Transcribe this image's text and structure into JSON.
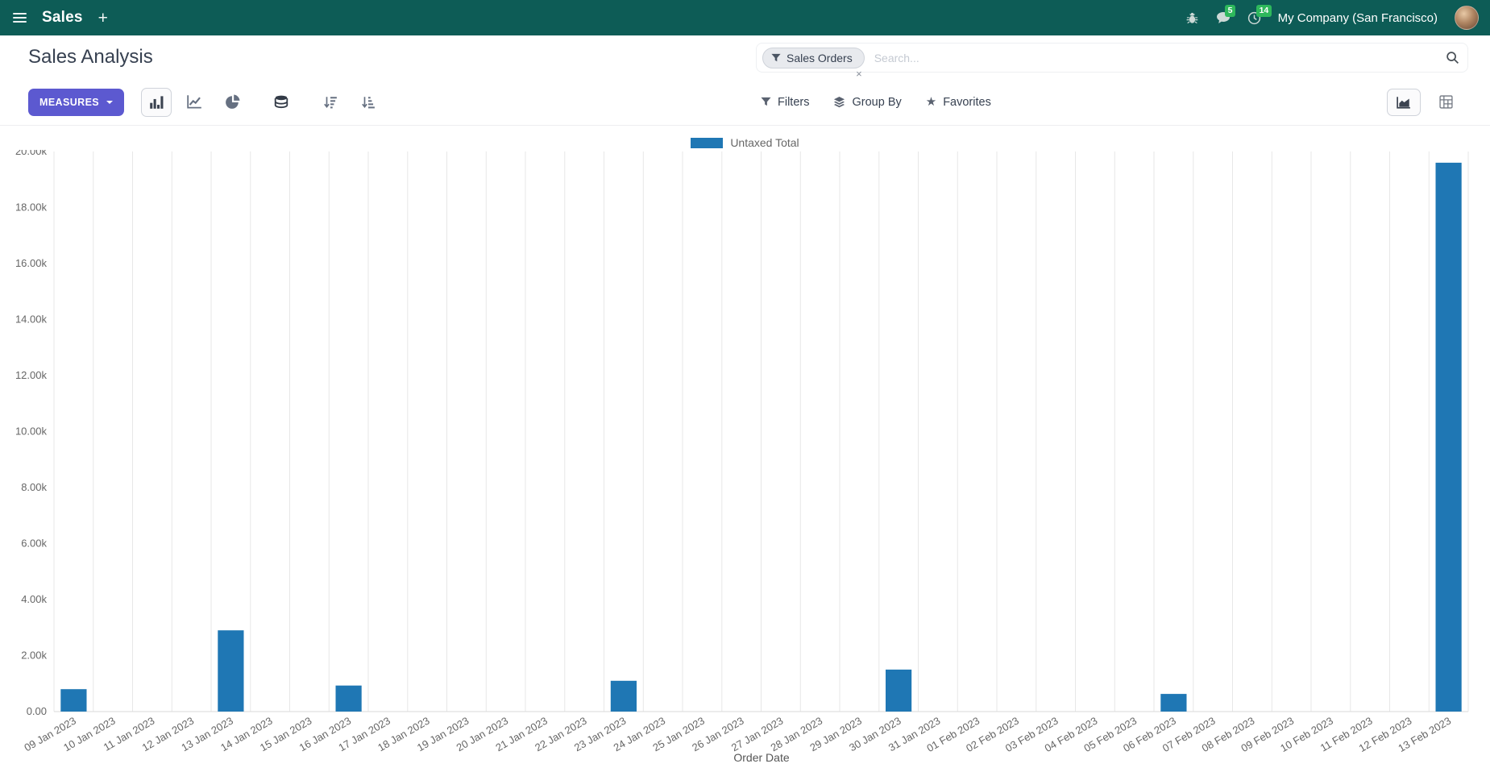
{
  "navbar": {
    "app_name": "Sales",
    "plus_label": "+",
    "company": "My Company (San Francisco)",
    "badges": {
      "chat": "5",
      "activity": "14"
    }
  },
  "control_panel": {
    "title": "Sales Analysis",
    "measures": "MEASURES",
    "filters": "Filters",
    "group_by": "Group By",
    "favorites": "Favorites",
    "search": {
      "facet_label": "Sales Orders",
      "remove": "×",
      "placeholder": "Search..."
    }
  },
  "chart_data": {
    "type": "bar",
    "title": "",
    "legend": [
      "Untaxed Total"
    ],
    "legend_position": "top",
    "series_color": "#1f77b4",
    "grid": "vertical",
    "xlabel": "Order Date",
    "ylabel": "",
    "ylim": [
      0,
      20000
    ],
    "y_tick_labels": [
      "0.00",
      "2.00k",
      "4.00k",
      "6.00k",
      "8.00k",
      "10.00k",
      "12.00k",
      "14.00k",
      "16.00k",
      "18.00k",
      "20.00k"
    ],
    "categories": [
      "09 Jan 2023",
      "10 Jan 2023",
      "11 Jan 2023",
      "12 Jan 2023",
      "13 Jan 2023",
      "14 Jan 2023",
      "15 Jan 2023",
      "16 Jan 2023",
      "17 Jan 2023",
      "18 Jan 2023",
      "19 Jan 2023",
      "20 Jan 2023",
      "21 Jan 2023",
      "22 Jan 2023",
      "23 Jan 2023",
      "24 Jan 2023",
      "25 Jan 2023",
      "26 Jan 2023",
      "27 Jan 2023",
      "28 Jan 2023",
      "29 Jan 2023",
      "30 Jan 2023",
      "31 Jan 2023",
      "01 Feb 2023",
      "02 Feb 2023",
      "03 Feb 2023",
      "04 Feb 2023",
      "05 Feb 2023",
      "06 Feb 2023",
      "07 Feb 2023",
      "08 Feb 2023",
      "09 Feb 2023",
      "10 Feb 2023",
      "11 Feb 2023",
      "12 Feb 2023",
      "13 Feb 2023"
    ],
    "values": [
      800,
      0,
      0,
      0,
      2900,
      0,
      0,
      930,
      0,
      0,
      0,
      0,
      0,
      0,
      1100,
      0,
      0,
      0,
      0,
      0,
      0,
      1500,
      0,
      0,
      0,
      0,
      0,
      0,
      630,
      0,
      0,
      0,
      0,
      0,
      0,
      19600
    ]
  }
}
